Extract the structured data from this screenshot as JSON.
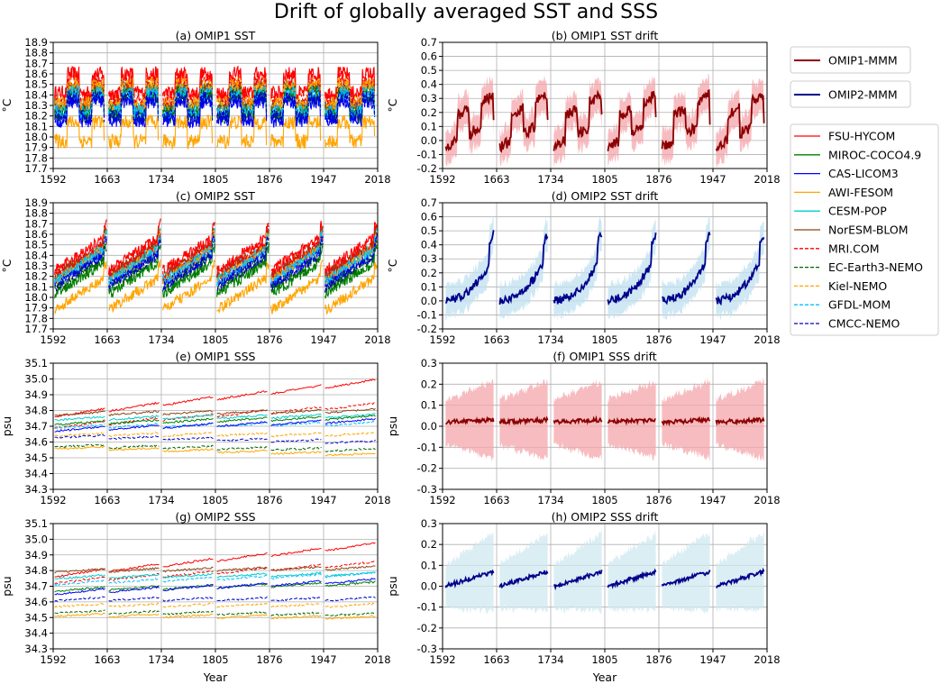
{
  "figure": {
    "title": "Drift of globally averaged SST and SSS",
    "xlabel": "Year"
  },
  "legend_mmm": [
    {
      "label": "OMIP1-MMM",
      "color": "#8b0000"
    },
    {
      "label": "OMIP2-MMM",
      "color": "#00008b"
    }
  ],
  "legend_models": [
    {
      "label": "FSU-HYCOM",
      "color": "#ff0000",
      "dash": false
    },
    {
      "label": "MIROC-COCO4.9",
      "color": "#008000",
      "dash": false
    },
    {
      "label": "CAS-LICOM3",
      "color": "#0000ff",
      "dash": false
    },
    {
      "label": "AWI-FESOM",
      "color": "#ffa500",
      "dash": false
    },
    {
      "label": "CESM-POP",
      "color": "#00cccc",
      "dash": false
    },
    {
      "label": "NorESM-BLOM",
      "color": "#8b4513",
      "dash": false
    },
    {
      "label": "MRI.COM",
      "color": "#ff0000",
      "dash": true
    },
    {
      "label": "EC-Earth3-NEMO",
      "color": "#006400",
      "dash": true
    },
    {
      "label": "Kiel-NEMO",
      "color": "#ffa500",
      "dash": true
    },
    {
      "label": "GFDL-MOM",
      "color": "#00bfff",
      "dash": true
    },
    {
      "label": "CMCC-NEMO",
      "color": "#0000cd",
      "dash": true
    }
  ],
  "chart_data": [
    {
      "id": "a",
      "type": "line",
      "title": "(a) OMIP1 SST",
      "ylabel": "°C",
      "xlabel": "",
      "xticks": [
        1592,
        1663,
        1734,
        1805,
        1876,
        1947,
        2018
      ],
      "xlim": [
        1592,
        2018
      ],
      "ylim": [
        17.7,
        18.9
      ],
      "yticks": [
        17.7,
        17.8,
        17.9,
        18.0,
        18.1,
        18.2,
        18.3,
        18.4,
        18.5,
        18.6,
        18.7,
        18.8,
        18.9
      ],
      "grid": true,
      "cycles": 6,
      "kind": "sst1",
      "series_means": [
        {
          "name": "FSU-HYCOM",
          "mean": 18.48
        },
        {
          "name": "MIROC-COCO4.9",
          "mean": 18.26
        },
        {
          "name": "CAS-LICOM3",
          "mean": 18.22
        },
        {
          "name": "AWI-FESOM",
          "mean": 18.02
        },
        {
          "name": "CESM-POP",
          "mean": 18.33
        },
        {
          "name": "NorESM-BLOM",
          "mean": 18.36
        },
        {
          "name": "MRI.COM",
          "mean": 18.42
        },
        {
          "name": "EC-Earth3-NEMO",
          "mean": 18.3
        },
        {
          "name": "Kiel-NEMO",
          "mean": 18.38
        },
        {
          "name": "GFDL-MOM",
          "mean": 18.3
        },
        {
          "name": "CMCC-NEMO",
          "mean": 18.25
        }
      ]
    },
    {
      "id": "b",
      "type": "line",
      "title": "(b) OMIP1 SST drift",
      "ylabel": "°C",
      "xlabel": "",
      "xticks": [
        1592,
        1663,
        1734,
        1805,
        1876,
        1947,
        2018
      ],
      "xlim": [
        1592,
        2018
      ],
      "ylim": [
        -0.2,
        0.7
      ],
      "yticks": [
        -0.2,
        -0.1,
        0.0,
        0.1,
        0.2,
        0.3,
        0.4,
        0.5,
        0.6,
        0.7
      ],
      "grid": true,
      "cycles": 6,
      "kind": "drift_sst1",
      "mmm": "OMIP1-MMM",
      "band_color": "#f4a6ab",
      "line_color": "#8b0000",
      "cycle_profile": {
        "start": -0.05,
        "end": 0.28,
        "band_halfwidth": 0.1
      }
    },
    {
      "id": "c",
      "type": "line",
      "title": "(c) OMIP2 SST",
      "ylabel": "°C",
      "xlabel": "",
      "xticks": [
        1592,
        1663,
        1734,
        1805,
        1876,
        1947,
        2018
      ],
      "xlim": [
        1592,
        2018
      ],
      "ylim": [
        17.7,
        18.9
      ],
      "yticks": [
        17.7,
        17.8,
        17.9,
        18.0,
        18.1,
        18.2,
        18.3,
        18.4,
        18.5,
        18.6,
        18.7,
        18.8,
        18.9
      ],
      "grid": true,
      "cycles": 6,
      "kind": "sst2",
      "series_means": [
        {
          "name": "FSU-HYCOM",
          "mean": 18.38
        },
        {
          "name": "MIROC-COCO4.9",
          "mean": 18.15
        },
        {
          "name": "CAS-LICOM3",
          "mean": 18.25
        },
        {
          "name": "AWI-FESOM",
          "mean": 18.0
        },
        {
          "name": "CESM-POP",
          "mean": 18.3
        },
        {
          "name": "NorESM-BLOM",
          "mean": 18.32
        },
        {
          "name": "MRI.COM",
          "mean": 18.33
        },
        {
          "name": "EC-Earth3-NEMO",
          "mean": 18.2
        },
        {
          "name": "Kiel-NEMO",
          "mean": 18.28
        },
        {
          "name": "GFDL-MOM",
          "mean": 18.27
        },
        {
          "name": "CMCC-NEMO",
          "mean": 18.22
        }
      ]
    },
    {
      "id": "d",
      "type": "line",
      "title": "(d) OMIP2 SST drift",
      "ylabel": "°C",
      "xlabel": "",
      "xticks": [
        1592,
        1663,
        1734,
        1805,
        1876,
        1947,
        2018
      ],
      "xlim": [
        1592,
        2018
      ],
      "ylim": [
        -0.2,
        0.7
      ],
      "yticks": [
        -0.2,
        -0.1,
        0.0,
        0.1,
        0.2,
        0.3,
        0.4,
        0.5,
        0.6,
        0.7
      ],
      "grid": true,
      "cycles": 6,
      "kind": "drift_sst2",
      "mmm": "OMIP2-MMM",
      "band_color": "#bfe0f0",
      "line_color": "#00008b",
      "cycle_profile": {
        "start": 0.0,
        "end": 0.48,
        "band_halfwidth": 0.1
      }
    },
    {
      "id": "e",
      "type": "line",
      "title": "(e) OMIP1 SSS",
      "ylabel": "psu",
      "xlabel": "",
      "xticks": [
        1592,
        1663,
        1734,
        1805,
        1876,
        1947,
        2018
      ],
      "xlim": [
        1592,
        2018
      ],
      "ylim": [
        34.3,
        35.1
      ],
      "yticks": [
        34.3,
        34.4,
        34.5,
        34.6,
        34.7,
        34.8,
        34.9,
        35.0,
        35.1
      ],
      "grid": true,
      "cycles": 6,
      "kind": "sss",
      "series": [
        {
          "name": "FSU-HYCOM",
          "start": 34.77,
          "end": 34.99
        },
        {
          "name": "MRI.COM",
          "start": 34.7,
          "end": 34.84
        },
        {
          "name": "NorESM-BLOM",
          "start": 34.78,
          "end": 34.8
        },
        {
          "name": "CESM-POP",
          "start": 34.75,
          "end": 34.77
        },
        {
          "name": "MIROC-COCO4.9",
          "start": 34.72,
          "end": 34.76
        },
        {
          "name": "GFDL-MOM",
          "start": 34.7,
          "end": 34.72
        },
        {
          "name": "CAS-LICOM3",
          "start": 34.68,
          "end": 34.74
        },
        {
          "name": "Kiel-NEMO",
          "start": 34.65,
          "end": 34.65
        },
        {
          "name": "CMCC-NEMO",
          "start": 34.64,
          "end": 34.6
        },
        {
          "name": "EC-Earth3-NEMO",
          "start": 34.58,
          "end": 34.55
        },
        {
          "name": "AWI-FESOM",
          "start": 34.57,
          "end": 34.52
        }
      ]
    },
    {
      "id": "f",
      "type": "line",
      "title": "(f) OMIP1 SSS drift",
      "ylabel": "psu",
      "xlabel": "",
      "xticks": [
        1592,
        1663,
        1734,
        1805,
        1876,
        1947,
        2018
      ],
      "xlim": [
        1592,
        2018
      ],
      "ylim": [
        -0.3,
        0.3
      ],
      "yticks": [
        -0.3,
        -0.2,
        -0.1,
        0.0,
        0.1,
        0.2,
        0.3
      ],
      "grid": true,
      "cycles": 6,
      "kind": "drift_sss1",
      "mmm": "OMIP1-MMM",
      "band_color": "#f4a6ab",
      "line_color": "#8b0000",
      "cycle_profile": {
        "start": 0.02,
        "end": 0.03,
        "band_halfwidth": 0.13
      }
    },
    {
      "id": "g",
      "type": "line",
      "title": "(g) OMIP2 SSS",
      "ylabel": "psu",
      "xlabel": "Year",
      "xticks": [
        1592,
        1663,
        1734,
        1805,
        1876,
        1947,
        2018
      ],
      "xlim": [
        1592,
        2018
      ],
      "ylim": [
        34.3,
        35.1
      ],
      "yticks": [
        34.3,
        34.4,
        34.5,
        34.6,
        34.7,
        34.8,
        34.9,
        35.0,
        35.1
      ],
      "grid": true,
      "cycles": 6,
      "kind": "sss",
      "series": [
        {
          "name": "FSU-HYCOM",
          "start": 34.77,
          "end": 34.97
        },
        {
          "name": "MRI.COM",
          "start": 34.73,
          "end": 34.85
        },
        {
          "name": "NorESM-BLOM",
          "start": 34.8,
          "end": 34.82
        },
        {
          "name": "CESM-POP",
          "start": 34.76,
          "end": 34.78
        },
        {
          "name": "GFDL-MOM",
          "start": 34.72,
          "end": 34.78
        },
        {
          "name": "MIROC-COCO4.9",
          "start": 34.68,
          "end": 34.72
        },
        {
          "name": "CAS-LICOM3",
          "start": 34.66,
          "end": 34.74
        },
        {
          "name": "CMCC-NEMO",
          "start": 34.62,
          "end": 34.62
        },
        {
          "name": "Kiel-NEMO",
          "start": 34.58,
          "end": 34.58
        },
        {
          "name": "EC-Earth3-NEMO",
          "start": 34.54,
          "end": 34.52
        },
        {
          "name": "AWI-FESOM",
          "start": 34.52,
          "end": 34.5
        }
      ]
    },
    {
      "id": "h",
      "type": "line",
      "title": "(h) OMIP2 SSS drift",
      "ylabel": "psu",
      "xlabel": "Year",
      "xticks": [
        1592,
        1663,
        1734,
        1805,
        1876,
        1947,
        2018
      ],
      "xlim": [
        1592,
        2018
      ],
      "ylim": [
        -0.3,
        0.3
      ],
      "yticks": [
        -0.3,
        -0.2,
        -0.1,
        0.0,
        0.1,
        0.2,
        0.3
      ],
      "grid": true,
      "cycles": 6,
      "kind": "drift_sss2",
      "mmm": "OMIP2-MMM",
      "band_color": "#cfe8f0",
      "line_color": "#00008b",
      "cycle_profile": {
        "start": 0.0,
        "end": 0.07,
        "band_halfwidth": 0.13
      }
    }
  ]
}
